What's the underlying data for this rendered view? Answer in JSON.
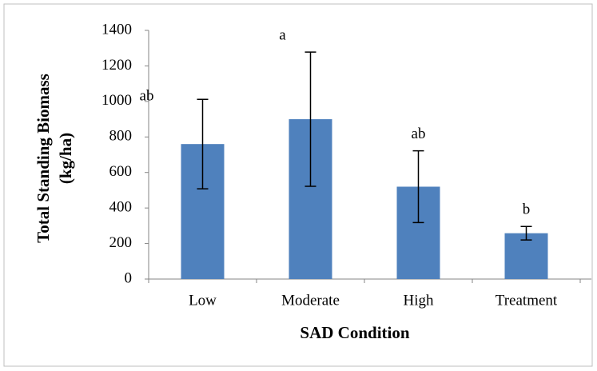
{
  "chart_data": {
    "type": "bar",
    "categories": [
      "Low",
      "Moderate",
      "High",
      "Treatment"
    ],
    "values": [
      760,
      900,
      520,
      258
    ],
    "errors": [
      252,
      378,
      202,
      38
    ],
    "annotations": [
      "ab",
      "a",
      "ab",
      "b"
    ],
    "color": "#4f81bd",
    "ylabel": [
      "Total Standing Biomass",
      "(kg/ha)"
    ],
    "xlabel": "SAD Condition",
    "ylim": [
      0,
      1400
    ],
    "yticks": [
      0,
      200,
      400,
      600,
      800,
      1000,
      1200,
      1400
    ],
    "grid": false
  }
}
